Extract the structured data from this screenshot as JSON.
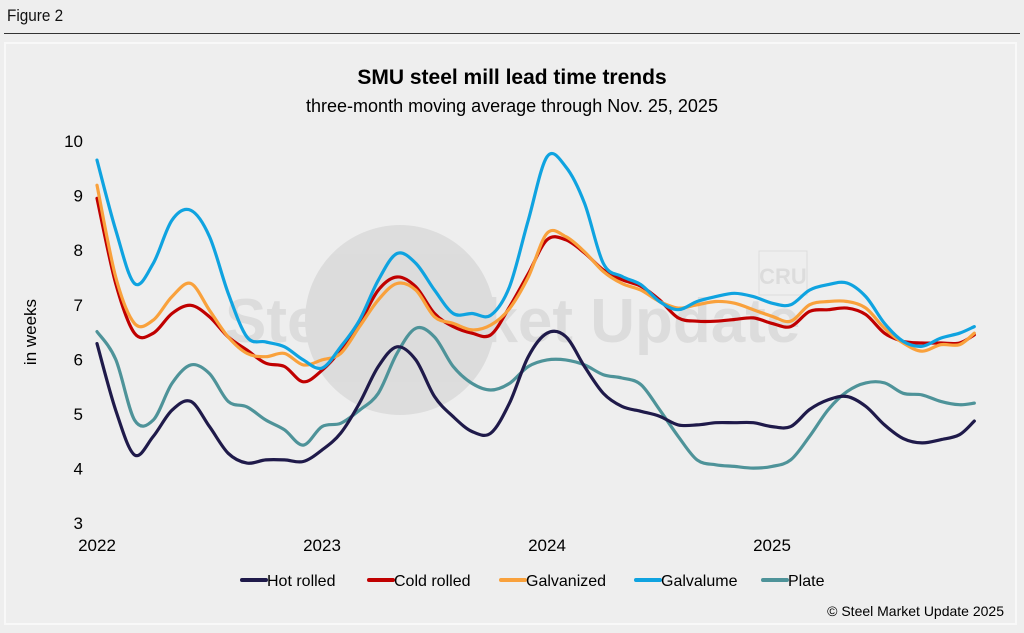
{
  "figure_label": "Figure 2",
  "watermark": {
    "brand": "SteelMarket Update",
    "partner": "CRU"
  },
  "copyright": "© Steel Market Update 2025",
  "chart_data": {
    "type": "line",
    "title": "SMU steel mill lead time trends",
    "subtitle": "three-month moving average through Nov. 25, 2025",
    "xlabel": "",
    "ylabel": "in weeks",
    "ylim": [
      3,
      10
    ],
    "yticks": [
      "3",
      "4",
      "5",
      "6",
      "7",
      "8",
      "9",
      "10"
    ],
    "xticks": [
      "2022",
      "2023",
      "2024",
      "2025"
    ],
    "grid": false,
    "legend": "bottom",
    "x": [
      "2022-01-01",
      "2022-02-01",
      "2022-03-01",
      "2022-04-01",
      "2022-05-01",
      "2022-06-01",
      "2022-07-01",
      "2022-08-01",
      "2022-09-01",
      "2022-10-01",
      "2022-11-01",
      "2022-12-01",
      "2023-01-01",
      "2023-02-01",
      "2023-03-01",
      "2023-04-01",
      "2023-05-01",
      "2023-06-01",
      "2023-07-01",
      "2023-08-01",
      "2023-09-01",
      "2023-10-01",
      "2023-11-01",
      "2023-12-01",
      "2024-01-01",
      "2024-02-01",
      "2024-03-01",
      "2024-04-01",
      "2024-05-01",
      "2024-06-01",
      "2024-07-01",
      "2024-08-01",
      "2024-09-01",
      "2024-10-01",
      "2024-11-01",
      "2024-12-01",
      "2025-01-01",
      "2025-02-01",
      "2025-03-01",
      "2025-04-01",
      "2025-05-01",
      "2025-06-01",
      "2025-07-01",
      "2025-08-01",
      "2025-09-01",
      "2025-10-01",
      "2025-11-01",
      "2025-11-25"
    ],
    "series": [
      {
        "name": "Hot rolled",
        "color": "#1f1a4a",
        "values": [
          6.29,
          5.07,
          4.25,
          4.59,
          5.07,
          5.23,
          4.77,
          4.28,
          4.1,
          4.16,
          4.16,
          4.13,
          4.34,
          4.65,
          5.2,
          5.87,
          6.23,
          5.99,
          5.32,
          4.95,
          4.68,
          4.65,
          5.2,
          6.05,
          6.48,
          6.42,
          5.87,
          5.38,
          5.14,
          5.05,
          4.96,
          4.8,
          4.8,
          4.84,
          4.84,
          4.84,
          4.77,
          4.77,
          5.08,
          5.26,
          5.32,
          5.14,
          4.8,
          4.55,
          4.47,
          4.53,
          4.62,
          4.87
        ]
      },
      {
        "name": "Cold rolled",
        "color": "#c00000",
        "values": [
          8.95,
          7.39,
          6.48,
          6.48,
          6.84,
          6.99,
          6.78,
          6.41,
          6.17,
          5.93,
          5.87,
          5.59,
          5.8,
          6.17,
          6.66,
          7.27,
          7.51,
          7.33,
          6.84,
          6.6,
          6.48,
          6.45,
          6.96,
          7.57,
          8.19,
          8.19,
          7.95,
          7.64,
          7.46,
          7.34,
          7.09,
          6.76,
          6.7,
          6.7,
          6.73,
          6.76,
          6.66,
          6.6,
          6.88,
          6.91,
          6.94,
          6.82,
          6.48,
          6.33,
          6.3,
          6.3,
          6.3,
          6.45
        ]
      },
      {
        "name": "Galvanized",
        "color": "#f9a13c",
        "values": [
          9.19,
          7.51,
          6.66,
          6.72,
          7.15,
          7.39,
          6.9,
          6.41,
          6.11,
          6.05,
          6.11,
          5.9,
          5.99,
          6.11,
          6.6,
          7.09,
          7.39,
          7.27,
          6.78,
          6.66,
          6.54,
          6.63,
          6.93,
          7.51,
          8.31,
          8.25,
          7.97,
          7.61,
          7.39,
          7.27,
          7.06,
          6.94,
          7.0,
          7.06,
          7.03,
          6.91,
          6.79,
          6.7,
          7.0,
          7.06,
          7.06,
          6.94,
          6.57,
          6.3,
          6.15,
          6.27,
          6.27,
          6.48
        ]
      },
      {
        "name": "Galvalume",
        "color": "#0fa3e0",
        "values": [
          9.65,
          8.37,
          7.39,
          7.76,
          8.55,
          8.73,
          8.25,
          7.21,
          6.41,
          6.32,
          6.23,
          5.99,
          5.84,
          6.23,
          6.72,
          7.45,
          7.94,
          7.76,
          7.27,
          6.84,
          6.84,
          6.81,
          7.33,
          8.55,
          9.71,
          9.53,
          8.86,
          7.76,
          7.52,
          7.37,
          7.06,
          6.91,
          7.06,
          7.15,
          7.21,
          7.15,
          7.03,
          7.0,
          7.27,
          7.37,
          7.4,
          7.15,
          6.66,
          6.33,
          6.24,
          6.39,
          6.48,
          6.6
        ]
      },
      {
        "name": "Plate",
        "color": "#4e9399",
        "values": [
          6.51,
          6.0,
          4.89,
          4.89,
          5.56,
          5.9,
          5.74,
          5.23,
          5.13,
          4.89,
          4.71,
          4.43,
          4.77,
          4.83,
          5.07,
          5.38,
          6.11,
          6.57,
          6.41,
          5.87,
          5.56,
          5.44,
          5.56,
          5.87,
          5.99,
          5.99,
          5.9,
          5.72,
          5.66,
          5.54,
          5.08,
          4.59,
          4.16,
          4.07,
          4.04,
          4.01,
          4.04,
          4.16,
          4.59,
          5.08,
          5.41,
          5.57,
          5.57,
          5.38,
          5.35,
          5.23,
          5.17,
          5.2
        ]
      }
    ]
  }
}
